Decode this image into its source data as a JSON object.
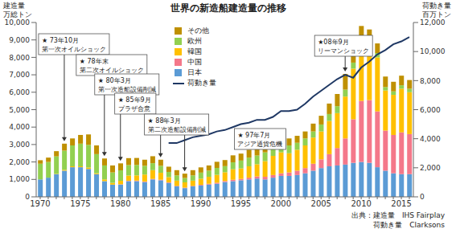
{
  "chart_data": {
    "type": "bar",
    "title": "世界の新造船建造量の推移",
    "ylabel": "建造量\n万総トン",
    "y2label": "荷動き量\n百万トン",
    "categories": [
      "1970",
      null,
      null,
      null,
      null,
      "1975",
      null,
      null,
      null,
      null,
      "1980",
      null,
      null,
      null,
      null,
      "1985",
      null,
      null,
      null,
      null,
      "1990",
      null,
      null,
      null,
      null,
      "1995",
      null,
      null,
      null,
      null,
      "2000",
      null,
      null,
      null,
      null,
      "2005",
      null,
      null,
      null,
      null,
      "2010",
      null,
      null,
      null,
      null,
      "2015",
      null
    ],
    "series": [
      {
        "name": "その他",
        "color": "#bf9000",
        "values": [
          200,
          250,
          300,
          400,
          400,
          500,
          600,
          500,
          400,
          400,
          400,
          400,
          400,
          350,
          400,
          350,
          300,
          300,
          250,
          300,
          300,
          300,
          350,
          350,
          400,
          400,
          450,
          450,
          450,
          450,
          400,
          400,
          400,
          400,
          450,
          500,
          600,
          700,
          900,
          1100,
          900,
          450,
          550,
          600,
          550,
          550,
          500
        ]
      },
      {
        "name": "欧州",
        "color": "#92d050",
        "values": [
          900,
          900,
          1000,
          1100,
          1200,
          1300,
          1300,
          1100,
          800,
          600,
          600,
          600,
          600,
          500,
          400,
          400,
          300,
          300,
          250,
          300,
          350,
          350,
          400,
          350,
          400,
          450,
          500,
          500,
          500,
          500,
          450,
          450,
          400,
          400,
          350,
          400,
          400,
          400,
          400,
          350,
          300,
          300,
          250,
          200,
          200,
          200,
          200
        ]
      },
      {
        "name": "韓国",
        "color": "#ffc000",
        "values": [
          0,
          0,
          20,
          50,
          50,
          50,
          80,
          50,
          100,
          100,
          200,
          300,
          300,
          400,
          500,
          400,
          300,
          300,
          300,
          300,
          350,
          400,
          450,
          500,
          600,
          600,
          650,
          700,
          900,
          1100,
          1200,
          1100,
          1200,
          1300,
          1500,
          1600,
          1900,
          2000,
          2400,
          2900,
          3100,
          3300,
          3100,
          2300,
          2300,
          2500,
          2400
        ]
      },
      {
        "name": "中国",
        "color": "#f4788a",
        "values": [
          0,
          0,
          0,
          0,
          0,
          0,
          0,
          0,
          0,
          0,
          20,
          20,
          30,
          30,
          30,
          30,
          30,
          30,
          30,
          30,
          40,
          50,
          60,
          60,
          80,
          80,
          100,
          120,
          150,
          150,
          150,
          200,
          250,
          300,
          400,
          500,
          700,
          1000,
          1500,
          2500,
          3500,
          3600,
          3200,
          2300,
          2200,
          2400,
          2300
        ]
      },
      {
        "name": "日本",
        "color": "#5b9bd5",
        "values": [
          1000,
          1100,
          1300,
          1500,
          1700,
          1700,
          1600,
          1300,
          900,
          700,
          700,
          900,
          900,
          850,
          1000,
          950,
          800,
          600,
          500,
          600,
          650,
          700,
          750,
          850,
          900,
          950,
          1000,
          1050,
          1000,
          1100,
          1200,
          1200,
          1250,
          1350,
          1500,
          1650,
          1750,
          1800,
          1850,
          1950,
          2000,
          1950,
          1700,
          1500,
          1350,
          1300,
          1300
        ]
      },
      {
        "name": "荷動き量",
        "color": "#1f3864",
        "type": "line",
        "axis": "y2",
        "values": [
          null,
          null,
          null,
          null,
          null,
          null,
          null,
          null,
          null,
          null,
          null,
          null,
          null,
          null,
          null,
          null,
          3700,
          3700,
          3900,
          4100,
          4200,
          4300,
          4500,
          4600,
          4800,
          5000,
          5100,
          5300,
          5300,
          5500,
          5900,
          5900,
          6000,
          6400,
          6900,
          7300,
          7700,
          8100,
          8400,
          8200,
          8900,
          9300,
          9800,
          10100,
          10500,
          10700,
          11000
        ]
      }
    ],
    "stacked": true,
    "ylim": [
      0,
      10000
    ],
    "yticks": [
      0,
      {
        "value": 1000,
        "label": "1,000"
      },
      {
        "value": 2000,
        "label": "2,000"
      },
      {
        "value": 3000,
        "label": "3,000"
      },
      {
        "value": 4000,
        "label": "4,000"
      },
      {
        "value": 5000,
        "label": "5,000"
      },
      {
        "value": 6000,
        "label": "6,000"
      },
      {
        "value": 7000,
        "label": "7,000"
      },
      {
        "value": 8000,
        "label": "8,000"
      },
      {
        "value": 9000,
        "label": "9,000"
      },
      {
        "value": 10000,
        "label": "10,000"
      }
    ],
    "y2lim": [
      0,
      12000
    ],
    "y2ticks": [
      0,
      {
        "value": 2000,
        "label": "2,000"
      },
      {
        "value": 4000,
        "label": "4,000"
      },
      {
        "value": 6000,
        "label": "6,000"
      },
      {
        "value": 8000,
        "label": "8,000"
      },
      {
        "value": 10000,
        "label": "10,000"
      },
      {
        "value": 12000,
        "label": "12,000"
      }
    ],
    "grid": false,
    "legend": "top-left",
    "annotations": [
      {
        "at": 1973,
        "text": "★ 73年10月\n第一次オイルショック"
      },
      {
        "at": 1978,
        "text": "★ 78年末\n第二次オイルショック"
      },
      {
        "at": 1980,
        "text": "★ 80年3月\n第一次造船設備削減"
      },
      {
        "at": 1985,
        "text": "★ 85年9月\nプラザ合意"
      },
      {
        "at": 1988,
        "text": "★ 88年3月\n第二次造船設備削減"
      },
      {
        "at": 1997,
        "text": "★ 97年7月\nアジア通貨危機"
      },
      {
        "at": 2008,
        "text": "★08年9月\nリーマンショック"
      }
    ],
    "source": [
      "出典：建造量　IHS Fairplay",
      "荷動き量　Clarksons"
    ]
  }
}
